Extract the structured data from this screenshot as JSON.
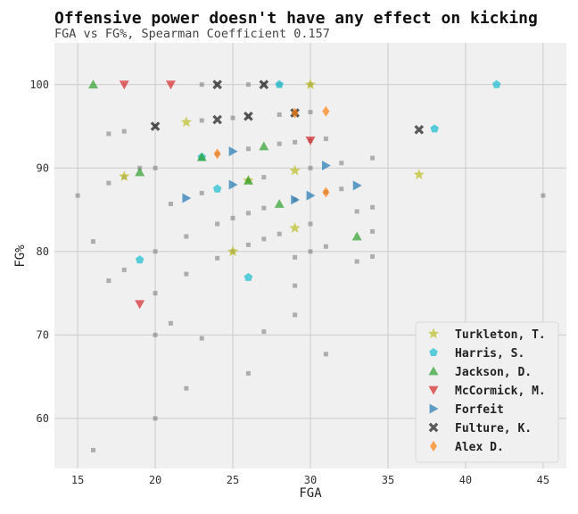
{
  "chart_data": {
    "type": "scatter",
    "title": "Offensive power doesn't have any effect on kicking",
    "subtitle": "FGA vs FG%, Spearman Coefficient 0.157",
    "xlabel": "FGA",
    "ylabel": "FG%",
    "xlim": [
      13.5,
      46.5
    ],
    "ylim": [
      54,
      105
    ],
    "xticks": [
      15,
      20,
      25,
      30,
      35,
      40,
      45
    ],
    "yticks": [
      60,
      70,
      80,
      90,
      100
    ],
    "grid": true,
    "legend_position": "bottom-right",
    "background": {
      "x": [
        15,
        16,
        16,
        17,
        17,
        17,
        18,
        18,
        18,
        19,
        20,
        20,
        20,
        20,
        20,
        20,
        21,
        21,
        22,
        22,
        22,
        23,
        23,
        23,
        23,
        24,
        24,
        24,
        24,
        25,
        25,
        25,
        26,
        26,
        26,
        26,
        26,
        26,
        26,
        27,
        27,
        27,
        27,
        27,
        28,
        28,
        28,
        28,
        29,
        29,
        29,
        29,
        29,
        29,
        30,
        30,
        30,
        30,
        30,
        30,
        31,
        31,
        31,
        31,
        32,
        32,
        33,
        33,
        34,
        34,
        34,
        34,
        45
      ],
      "y": [
        86.7,
        81.2,
        56.2,
        94.1,
        88.2,
        76.5,
        94.4,
        77.8,
        88.9,
        90.0,
        90.0,
        80.0,
        75.0,
        70.0,
        60.0,
        95.0,
        85.7,
        71.4,
        81.8,
        77.3,
        63.6,
        100.0,
        95.7,
        87.0,
        69.6,
        83.3,
        79.2,
        100.0,
        91.7,
        96.0,
        84.0,
        80.0,
        100.0,
        92.3,
        84.6,
        80.8,
        65.4,
        96.2,
        88.5,
        100.0,
        88.9,
        85.2,
        81.5,
        70.4,
        100.0,
        96.4,
        92.9,
        82.1,
        96.6,
        93.1,
        86.2,
        79.3,
        75.9,
        72.4,
        96.7,
        90.0,
        83.3,
        80.0,
        100.0,
        93.3,
        93.5,
        87.1,
        80.6,
        67.7,
        90.6,
        87.5,
        84.8,
        78.8,
        91.2,
        85.3,
        82.4,
        79.4,
        86.7
      ]
    },
    "series": [
      {
        "name": "Turkleton, T.",
        "color": "#bcbd22",
        "marker": "star",
        "x": [
          18,
          22,
          25,
          26,
          29,
          29,
          30,
          37
        ],
        "y": [
          89.0,
          95.5,
          80.0,
          88.5,
          89.7,
          82.8,
          100.0,
          89.2
        ]
      },
      {
        "name": "Harris, S.",
        "color": "#17becf",
        "marker": "pentagon",
        "x": [
          19,
          23,
          24,
          26,
          28,
          38,
          42
        ],
        "y": [
          79.0,
          91.3,
          87.5,
          76.9,
          100.0,
          94.7,
          100.0
        ]
      },
      {
        "name": "Jackson, D.",
        "color": "#2ca02c",
        "marker": "triangle-up",
        "x": [
          16,
          19,
          23,
          26,
          27,
          28,
          33
        ],
        "y": [
          100.0,
          89.5,
          91.3,
          88.5,
          92.6,
          85.7,
          81.8
        ]
      },
      {
        "name": "McCormick, M.",
        "color": "#d62728",
        "marker": "triangle-down",
        "x": [
          18,
          19,
          21,
          30
        ],
        "y": [
          100.0,
          73.7,
          100.0,
          93.3
        ]
      },
      {
        "name": "Forfeit",
        "color": "#1f77b4",
        "marker": "triangle-right",
        "x": [
          22,
          25,
          25,
          29,
          30,
          31,
          33
        ],
        "y": [
          86.4,
          92.0,
          88.0,
          86.2,
          86.7,
          90.3,
          87.9
        ]
      },
      {
        "name": "Fulture, K.",
        "color": "#333333",
        "marker": "x",
        "x": [
          20,
          24,
          24,
          26,
          27,
          29,
          37
        ],
        "y": [
          95.0,
          100.0,
          95.8,
          96.2,
          100.0,
          96.6,
          94.6
        ]
      },
      {
        "name": "Alex D.",
        "color": "#ff7f0e",
        "marker": "diamond",
        "x": [
          24,
          29,
          31,
          31
        ],
        "y": [
          91.7,
          96.6,
          96.8,
          87.1
        ]
      }
    ]
  }
}
